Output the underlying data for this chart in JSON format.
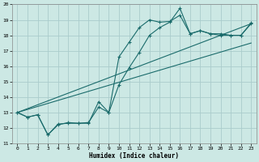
{
  "xlabel": "Humidex (Indice chaleur)",
  "background_color": "#cce8e4",
  "grid_color": "#aacccc",
  "line_color": "#1a6b6b",
  "xlim": [
    -0.5,
    23.5
  ],
  "ylim": [
    11,
    20
  ],
  "xticks": [
    0,
    1,
    2,
    3,
    4,
    5,
    6,
    7,
    8,
    9,
    10,
    11,
    12,
    13,
    14,
    15,
    16,
    17,
    18,
    19,
    20,
    21,
    22,
    23
  ],
  "yticks": [
    11,
    12,
    13,
    14,
    15,
    16,
    17,
    18,
    19,
    20
  ],
  "line1_x": [
    0,
    1,
    2,
    3,
    4,
    5,
    6,
    7,
    8,
    9,
    10,
    11,
    12,
    13,
    14,
    15,
    16,
    17,
    18,
    19,
    20,
    21,
    22,
    23
  ],
  "line1_y": [
    13.0,
    12.7,
    12.85,
    11.55,
    12.25,
    12.3,
    12.3,
    12.3,
    13.7,
    13.0,
    16.6,
    17.55,
    18.5,
    19.0,
    18.85,
    18.9,
    19.3,
    18.1,
    18.3,
    18.1,
    18.1,
    18.0,
    18.0,
    18.8
  ],
  "line2_x": [
    0,
    1,
    2,
    3,
    4,
    5,
    6,
    7,
    8,
    9,
    10,
    11,
    12,
    13,
    14,
    15,
    16,
    17,
    18,
    19,
    20,
    21,
    22,
    23
  ],
  "line2_y": [
    13.0,
    12.7,
    12.85,
    11.55,
    12.2,
    12.35,
    12.3,
    12.35,
    13.35,
    13.0,
    14.8,
    15.9,
    16.9,
    18.0,
    18.5,
    18.85,
    19.75,
    18.1,
    18.3,
    18.1,
    18.0,
    18.0,
    18.0,
    18.75
  ],
  "line3_x": [
    0,
    23
  ],
  "line3_y": [
    13.0,
    18.75
  ],
  "line4_x": [
    0,
    23
  ],
  "line4_y": [
    13.0,
    17.5
  ]
}
